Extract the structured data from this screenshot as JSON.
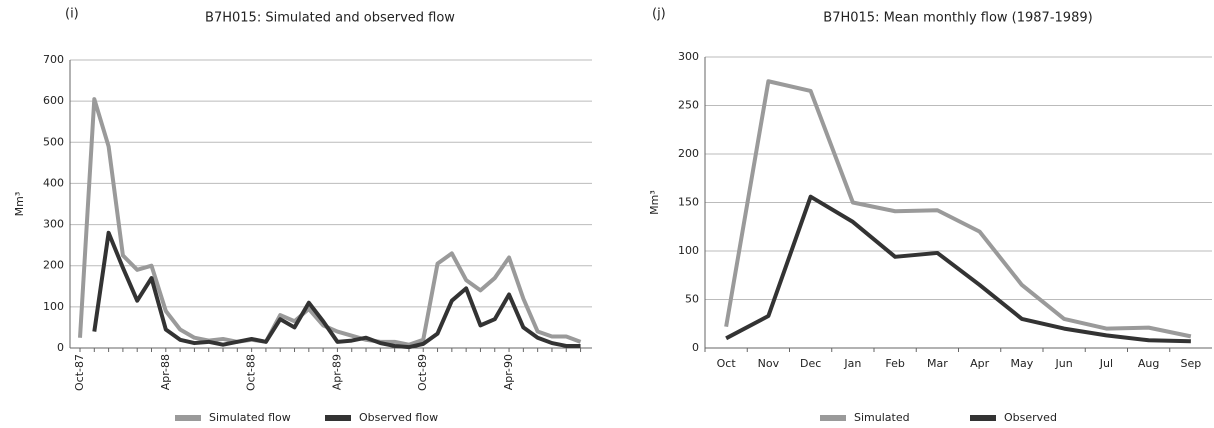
{
  "chart_data": [
    {
      "type": "line",
      "panel": "(i)",
      "title": "B7H015:  Simulated and observed flow",
      "y_label": "Mm³",
      "categories": [
        "Oct-87",
        null,
        null,
        null,
        null,
        null,
        "Apr-88",
        null,
        null,
        null,
        null,
        null,
        "Oct-88",
        null,
        null,
        null,
        null,
        null,
        "Apr-89",
        null,
        null,
        null,
        null,
        null,
        "Oct-89",
        null,
        null,
        null,
        null,
        null,
        "Apr-90",
        null,
        null,
        null,
        null,
        null
      ],
      "series": [
        {
          "name": "Simulated flow",
          "color": "#9a9a9a",
          "values": [
            25,
            605,
            490,
            225,
            190,
            200,
            90,
            45,
            25,
            18,
            22,
            15,
            20,
            15,
            80,
            65,
            95,
            55,
            40,
            30,
            20,
            15,
            15,
            8,
            20,
            205,
            230,
            165,
            140,
            170,
            220,
            120,
            40,
            28,
            28,
            15
          ]
        },
        {
          "name": "Observed flow",
          "color": "#333333",
          "values": [
            null,
            40,
            280,
            195,
            115,
            170,
            45,
            20,
            12,
            15,
            8,
            15,
            22,
            15,
            70,
            50,
            110,
            65,
            15,
            18,
            25,
            12,
            5,
            2,
            10,
            35,
            115,
            145,
            55,
            70,
            130,
            50,
            25,
            12,
            5,
            5
          ]
        }
      ],
      "ylim": [
        0,
        700
      ],
      "yticks": [
        0,
        100,
        200,
        300,
        400,
        500,
        600,
        700
      ],
      "grid": true,
      "legend": "bottom"
    },
    {
      "type": "line",
      "panel": "(j)",
      "title": "B7H015: Mean monthly flow (1987-1989)",
      "y_label": "Mm³",
      "categories": [
        "Oct",
        "Nov",
        "Dec",
        "Jan",
        "Feb",
        "Mar",
        "Apr",
        "May",
        "Jun",
        "Jul",
        "Aug",
        "Sep"
      ],
      "series": [
        {
          "name": "Simulated",
          "color": "#9a9a9a",
          "values": [
            22,
            275,
            265,
            150,
            141,
            142,
            120,
            65,
            30,
            20,
            21,
            12
          ]
        },
        {
          "name": "Observed",
          "color": "#333333",
          "values": [
            10,
            33,
            156,
            130,
            94,
            98,
            65,
            30,
            20,
            13,
            8,
            7
          ]
        }
      ],
      "ylim": [
        0,
        300
      ],
      "yticks": [
        0,
        50,
        100,
        150,
        200,
        250,
        300
      ],
      "grid": true,
      "legend": "bottom"
    }
  ]
}
